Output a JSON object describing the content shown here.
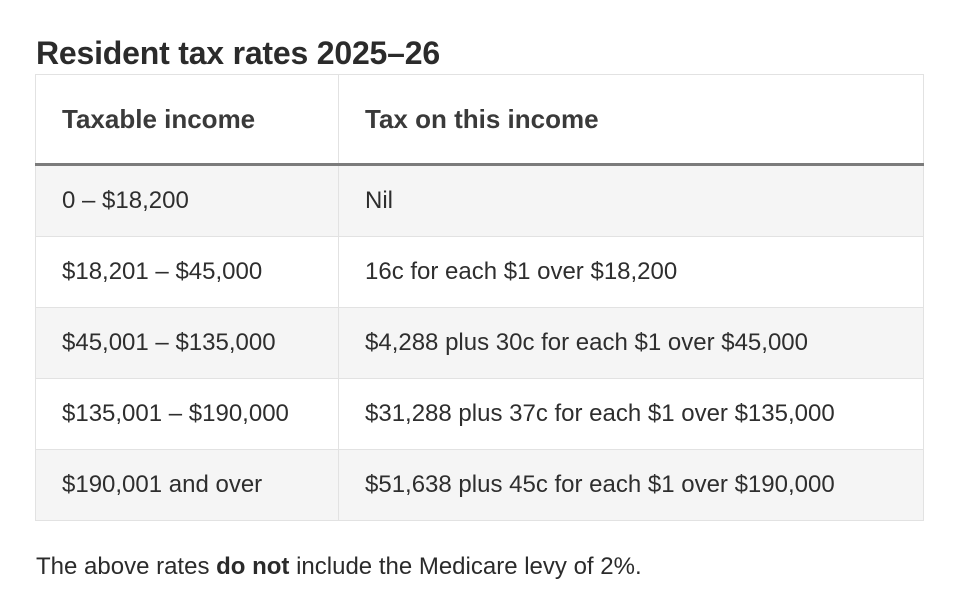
{
  "title": "Resident tax rates 2025–26",
  "table": {
    "headers": [
      "Taxable income",
      "Tax on this income"
    ],
    "rows": [
      {
        "income": "0 – $18,200",
        "tax": "Nil"
      },
      {
        "income": "$18,201 – $45,000",
        "tax": "16c for each $1 over $18,200"
      },
      {
        "income": "$45,001 – $135,000",
        "tax": "$4,288 plus 30c for each $1 over $45,000"
      },
      {
        "income": "$135,001 – $190,000",
        "tax": "$31,288 plus 37c for each $1 over $135,000"
      },
      {
        "income": "$190,001 and over",
        "tax": "$51,638 plus 45c for each $1 over $190,000"
      }
    ]
  },
  "footnote": {
    "before": "The above rates ",
    "emphasis": "do not",
    "after": " include the Medicare levy of 2%."
  }
}
